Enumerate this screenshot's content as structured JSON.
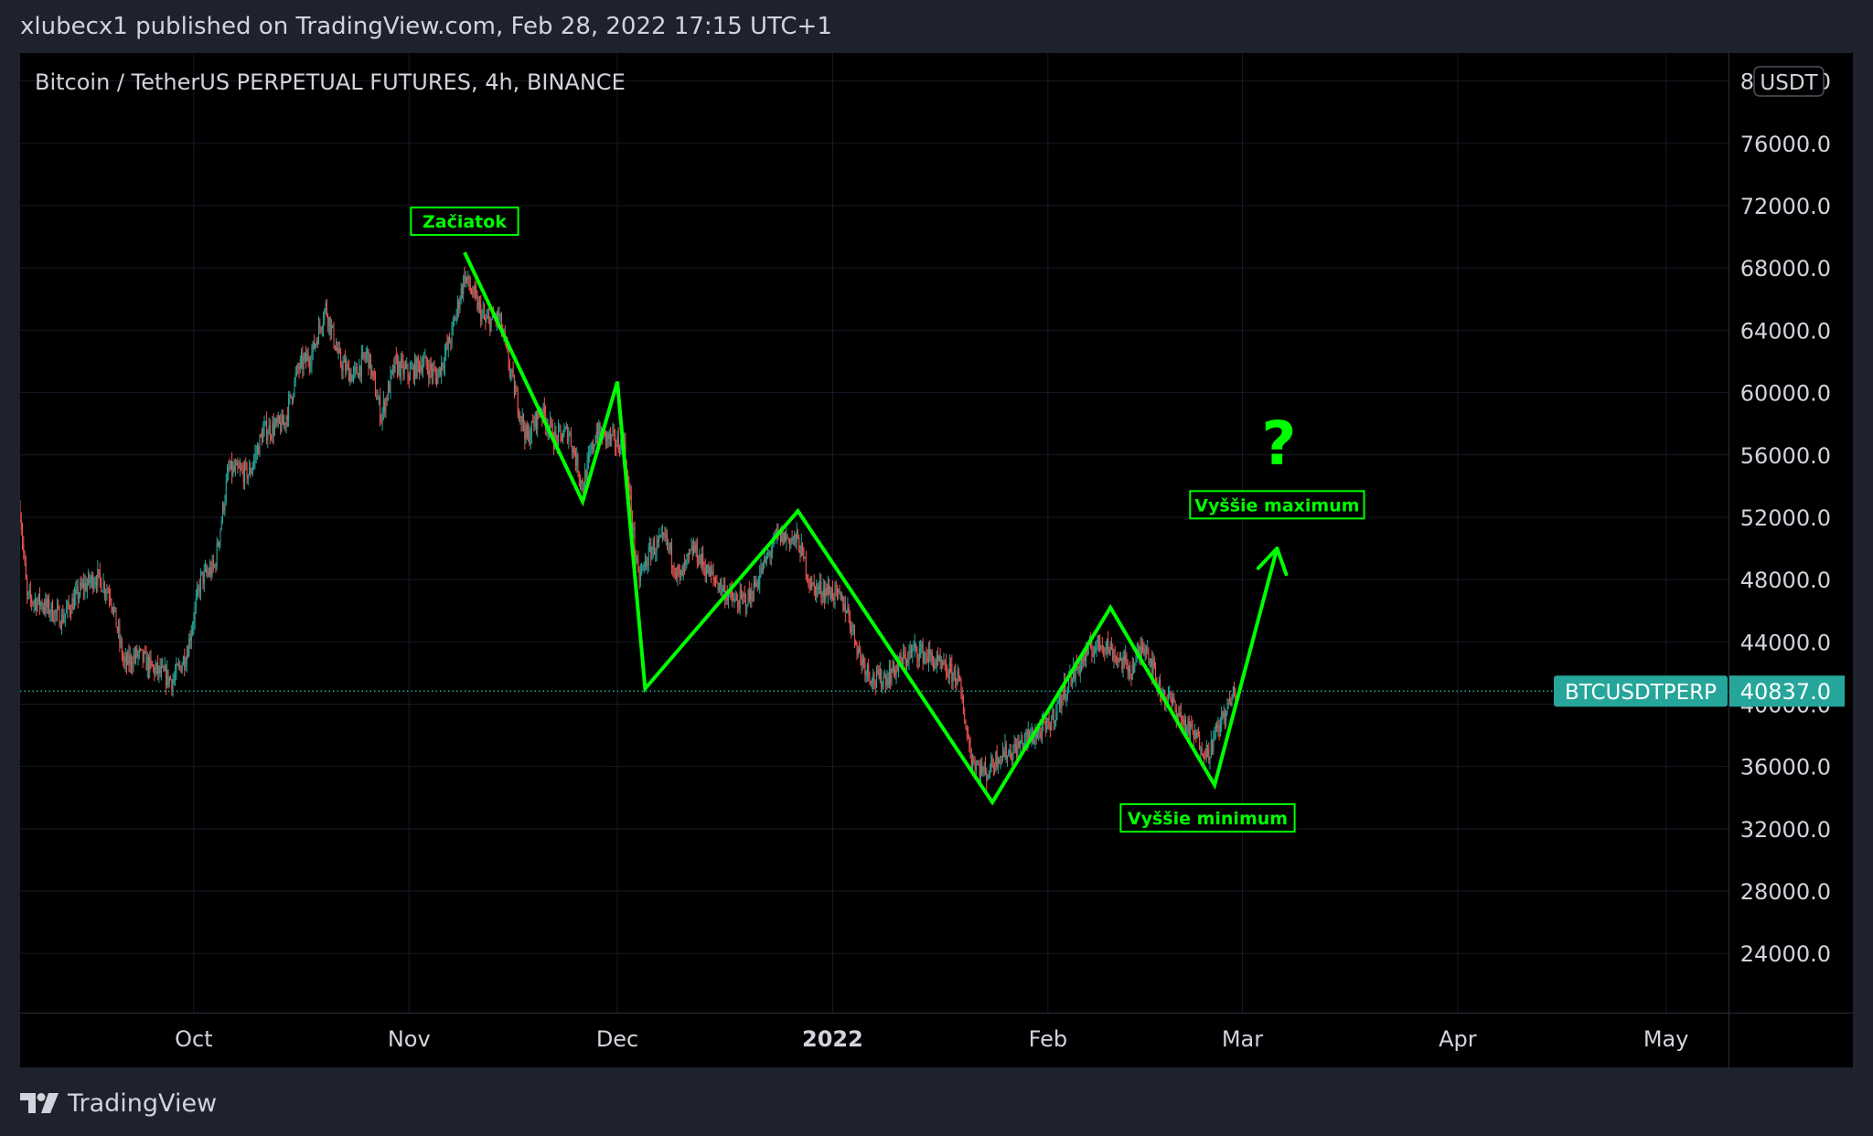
{
  "header": {
    "published_by": "xlubecx1 published on TradingView.com, Feb 28, 2022 17:15 UTC+1"
  },
  "footer": {
    "brand": "TradingView",
    "logo_icon": "tradingview-logo-icon"
  },
  "colors": {
    "background": "#000000",
    "frame": "#1e222d",
    "grid": "#161a25",
    "text": "#d1d4dc",
    "candle_up": "#26a69a",
    "candle_down": "#ef5350",
    "annotation": "#00ff00",
    "price_line": "#26a69a"
  },
  "chart_data": {
    "type": "candlestick",
    "title": "Bitcoin / TetherUS PERPETUAL FUTURES, 4h, BINANCE",
    "currency": "USDT",
    "xlabel": "",
    "ylabel": "",
    "x_ticks": [
      {
        "label": "Oct",
        "date": "2021-10-01",
        "bold": false
      },
      {
        "label": "Nov",
        "date": "2021-11-01",
        "bold": false
      },
      {
        "label": "Dec",
        "date": "2021-12-01",
        "bold": false
      },
      {
        "label": "2022",
        "date": "2022-01-01",
        "bold": true
      },
      {
        "label": "Feb",
        "date": "2022-02-01",
        "bold": false
      },
      {
        "label": "Mar",
        "date": "2022-03-01",
        "bold": false
      },
      {
        "label": "Apr",
        "date": "2022-04-01",
        "bold": false
      },
      {
        "label": "May",
        "date": "2022-05-01",
        "bold": false
      }
    ],
    "x_range": [
      "2021-09-06",
      "2022-05-10"
    ],
    "y_ticks": [
      "80000.0",
      "76000.0",
      "72000.0",
      "68000.0",
      "64000.0",
      "60000.0",
      "56000.0",
      "52000.0",
      "48000.0",
      "44000.0",
      "40000.0",
      "36000.0",
      "32000.0",
      "28000.0",
      "24000.0"
    ],
    "y_tick_values": [
      80000,
      76000,
      72000,
      68000,
      64000,
      60000,
      56000,
      52000,
      48000,
      44000,
      40000,
      36000,
      32000,
      28000,
      24000
    ],
    "ylim": [
      20200,
      81800
    ],
    "grid": true,
    "current_price": {
      "symbol": "BTCUSDTPERP",
      "value": "40837.0",
      "price": 40837
    },
    "price_path": [
      [
        "2021-09-06",
        52500
      ],
      [
        "2021-09-07",
        46800
      ],
      [
        "2021-09-09",
        46500
      ],
      [
        "2021-09-12",
        45500
      ],
      [
        "2021-09-15",
        47500
      ],
      [
        "2021-09-17",
        48200
      ],
      [
        "2021-09-19",
        47100
      ],
      [
        "2021-09-21",
        42500
      ],
      [
        "2021-09-23",
        43200
      ],
      [
        "2021-09-25",
        42300
      ],
      [
        "2021-09-28",
        41500
      ],
      [
        "2021-09-30",
        43300
      ],
      [
        "2021-10-02",
        48000
      ],
      [
        "2021-10-04",
        48800
      ],
      [
        "2021-10-06",
        55000
      ],
      [
        "2021-10-09",
        54800
      ],
      [
        "2021-10-11",
        57500
      ],
      [
        "2021-10-14",
        58000
      ],
      [
        "2021-10-16",
        61500
      ],
      [
        "2021-10-18",
        62500
      ],
      [
        "2021-10-20",
        65500
      ],
      [
        "2021-10-22",
        62000
      ],
      [
        "2021-10-24",
        61000
      ],
      [
        "2021-10-26",
        62500
      ],
      [
        "2021-10-28",
        58500
      ],
      [
        "2021-10-30",
        61800
      ],
      [
        "2021-11-01",
        61200
      ],
      [
        "2021-11-03",
        62000
      ],
      [
        "2021-11-05",
        61000
      ],
      [
        "2021-11-07",
        63500
      ],
      [
        "2021-11-09",
        67500
      ],
      [
        "2021-11-10",
        66500
      ],
      [
        "2021-11-12",
        64500
      ],
      [
        "2021-11-14",
        64800
      ],
      [
        "2021-11-16",
        60500
      ],
      [
        "2021-11-18",
        57000
      ],
      [
        "2021-11-20",
        59000
      ],
      [
        "2021-11-22",
        57000
      ],
      [
        "2021-11-24",
        57500
      ],
      [
        "2021-11-26",
        54000
      ],
      [
        "2021-11-28",
        57500
      ],
      [
        "2021-11-30",
        57000
      ],
      [
        "2021-12-02",
        56500
      ],
      [
        "2021-12-04",
        48000
      ],
      [
        "2021-12-06",
        50000
      ],
      [
        "2021-12-08",
        50500
      ],
      [
        "2021-12-10",
        48000
      ],
      [
        "2021-12-12",
        50000
      ],
      [
        "2021-12-14",
        48500
      ],
      [
        "2021-12-16",
        47500
      ],
      [
        "2021-12-18",
        46500
      ],
      [
        "2021-12-20",
        46800
      ],
      [
        "2021-12-22",
        48800
      ],
      [
        "2021-12-24",
        50800
      ],
      [
        "2021-12-27",
        50500
      ],
      [
        "2021-12-29",
        47500
      ],
      [
        "2022-01-01",
        47200
      ],
      [
        "2022-01-03",
        46200
      ],
      [
        "2022-01-05",
        43000
      ],
      [
        "2022-01-07",
        41500
      ],
      [
        "2022-01-09",
        41800
      ],
      [
        "2022-01-11",
        42800
      ],
      [
        "2022-01-13",
        43500
      ],
      [
        "2022-01-15",
        43000
      ],
      [
        "2022-01-17",
        42200
      ],
      [
        "2022-01-19",
        41800
      ],
      [
        "2022-01-21",
        36500
      ],
      [
        "2022-01-23",
        35500
      ],
      [
        "2022-01-25",
        36800
      ],
      [
        "2022-01-27",
        37000
      ],
      [
        "2022-01-29",
        37800
      ],
      [
        "2022-02-01",
        38500
      ],
      [
        "2022-02-04",
        41500
      ],
      [
        "2022-02-07",
        43500
      ],
      [
        "2022-02-09",
        44000
      ],
      [
        "2022-02-11",
        43000
      ],
      [
        "2022-02-13",
        42200
      ],
      [
        "2022-02-15",
        44000
      ],
      [
        "2022-02-17",
        41000
      ],
      [
        "2022-02-19",
        40000
      ],
      [
        "2022-02-21",
        38500
      ],
      [
        "2022-02-23",
        37500
      ],
      [
        "2022-02-24",
        36800
      ],
      [
        "2022-02-26",
        39000
      ],
      [
        "2022-02-28",
        40837
      ]
    ],
    "wave_lines": [
      [
        [
          "2021-11-09",
          69000
        ],
        [
          "2021-11-26",
          53000
        ],
        [
          "2021-12-01",
          60700
        ],
        [
          "2021-12-05",
          41000
        ],
        [
          "2021-12-27",
          52400
        ],
        [
          "2022-01-24",
          33700
        ],
        [
          "2022-02-10",
          46200
        ],
        [
          "2022-02-25",
          34800
        ],
        [
          "2022-03-06",
          50000
        ]
      ]
    ],
    "arrow": {
      "from": [
        "2022-03-03",
        43800
      ],
      "to": [
        "2022-03-06",
        50000
      ]
    },
    "annotations": [
      {
        "id": "zaciatok",
        "text": "Začiatok",
        "date": "2021-11-09",
        "price": 71000
      },
      {
        "id": "vyssie-maximum",
        "text": "Vyššie maximum",
        "date": "2022-03-06",
        "price": 52800
      },
      {
        "id": "vyssie-minimum",
        "text": "Vyššie minimum",
        "date": "2022-02-24",
        "price": 32700
      },
      {
        "id": "question",
        "text": "?",
        "date": "2022-03-06",
        "price": 56800
      }
    ]
  }
}
